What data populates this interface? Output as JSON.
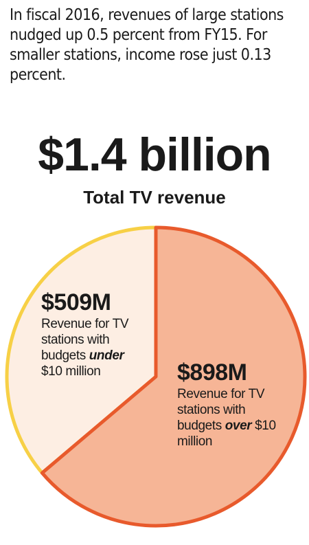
{
  "intro_text": "In fiscal 2016, revenues of large stations nudged up 0.5 percent from FY15. For smaller stations, income rose just 0.13 percent.",
  "headline": "$1.4 billion",
  "subtitle": "Total TV revenue",
  "colors": {
    "small_fill": "#fdeee3",
    "small_stroke": "#f7d046",
    "large_fill": "#f6b596",
    "large_stroke": "#e85a2c"
  },
  "slices": [
    {
      "value_label": "$509M",
      "desc_before": "Revenue for TV stations with budgets ",
      "desc_emphasis": "under",
      "desc_after": " $10 million"
    },
    {
      "value_label": "$898M",
      "desc_before": "Revenue for TV stations with budgets ",
      "desc_emphasis": "over",
      "desc_after": " $10 million"
    }
  ],
  "chart_data": {
    "type": "pie",
    "title": "$1.4 billion",
    "subtitle": "Total TV revenue",
    "unit": "million USD",
    "slices": [
      {
        "label": "Revenue for TV stations with budgets under $10 million",
        "value": 509,
        "color": "#fdeee3"
      },
      {
        "label": "Revenue for TV stations with budgets over $10 million",
        "value": 898,
        "color": "#f6b596"
      }
    ]
  }
}
